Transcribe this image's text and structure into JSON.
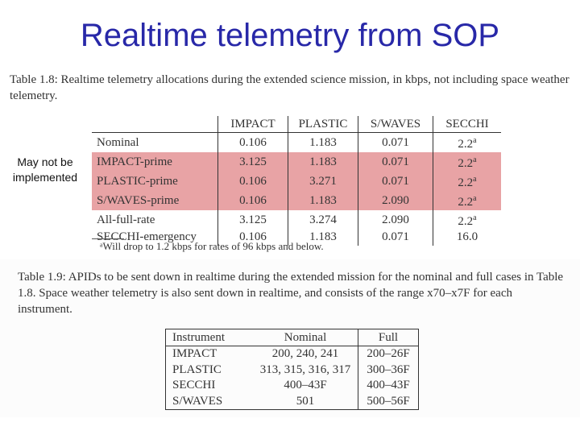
{
  "title": "Realtime telemetry from SOP",
  "table1": {
    "caption": "Table 1.8: Realtime telemetry allocations during the extended science mission, in kbps, not including space weather telemetry.",
    "columns": [
      "IMPACT",
      "PLASTIC",
      "S/WAVES",
      "SECCHI"
    ],
    "rows": [
      {
        "mode": "Nominal",
        "impact": "0.106",
        "plastic": "1.183",
        "swaves": "0.071",
        "secchi": "2.2",
        "mark": "a",
        "highlight": false
      },
      {
        "mode": "IMPACT-prime",
        "impact": "3.125",
        "plastic": "1.183",
        "swaves": "0.071",
        "secchi": "2.2",
        "mark": "a",
        "highlight": true
      },
      {
        "mode": "PLASTIC-prime",
        "impact": "0.106",
        "plastic": "3.271",
        "swaves": "0.071",
        "secchi": "2.2",
        "mark": "a",
        "highlight": true
      },
      {
        "mode": "S/WAVES-prime",
        "impact": "0.106",
        "plastic": "1.183",
        "swaves": "2.090",
        "secchi": "2.2",
        "mark": "a",
        "highlight": true
      },
      {
        "mode": "All-full-rate",
        "impact": "3.125",
        "plastic": "3.274",
        "swaves": "2.090",
        "secchi": "2.2",
        "mark": "a",
        "highlight": false
      },
      {
        "mode": "SECCHI-emergency",
        "impact": "0.106",
        "plastic": "1.183",
        "swaves": "0.071",
        "secchi": "16.0",
        "mark": "",
        "highlight": false
      }
    ],
    "footnote": "ᵃWill drop to 1.2 kbps for rates of 96 kbps and below.",
    "highlight_color": "#e8a3a5"
  },
  "side_note": "May not be implemented",
  "table2": {
    "caption": "Table 1.9: APIDs to be sent down in realtime during the extended mission for the nominal and full cases in Table 1.8. Space weather telemetry is also sent down in realtime, and consists of the range x70–x7F for each instrument.",
    "columns": [
      "Instrument",
      "Nominal",
      "Full"
    ],
    "rows": [
      {
        "instrument": "IMPACT",
        "nominal": "200, 240, 241",
        "full": "200–26F"
      },
      {
        "instrument": "PLASTIC",
        "nominal": "313, 315, 316, 317",
        "full": "300–36F"
      },
      {
        "instrument": "SECCHI",
        "nominal": "400–43F",
        "full": "400–43F"
      },
      {
        "instrument": "S/WAVES",
        "nominal": "501",
        "full": "500–56F"
      }
    ]
  },
  "colors": {
    "title": "#2828a8"
  }
}
